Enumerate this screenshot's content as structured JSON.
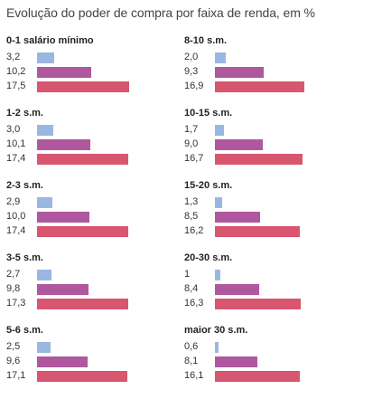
{
  "chart_data": {
    "type": "bar",
    "title": "Evolução do poder de compra por faixa de renda, em %",
    "colors": [
      "#9ab7e2",
      "#b0589e",
      "#d8566f"
    ],
    "groups": [
      {
        "label": "0-1 salário mínimo",
        "values": [
          "3,2",
          "10,2",
          "17,5"
        ]
      },
      {
        "label": "1-2 s.m.",
        "values": [
          "3,0",
          "10,1",
          "17,4"
        ]
      },
      {
        "label": "2-3 s.m.",
        "values": [
          "2,9",
          "10,0",
          "17,4"
        ]
      },
      {
        "label": "3-5 s.m.",
        "values": [
          "2,7",
          "9,8",
          "17,3"
        ]
      },
      {
        "label": "5-6 s.m.",
        "values": [
          "2,5",
          "9,6",
          "17,1"
        ]
      },
      {
        "label": "8-10 s.m.",
        "values": [
          "2,0",
          "9,3",
          "16,9"
        ]
      },
      {
        "label": "10-15 s.m.",
        "values": [
          "1,7",
          "9,0",
          "16,7"
        ]
      },
      {
        "label": "15-20 s.m.",
        "values": [
          "1,3",
          "8,5",
          "16,2"
        ]
      },
      {
        "label": "20-30 s.m.",
        "values": [
          "1",
          "8,4",
          "16,3"
        ]
      },
      {
        "label": "maior 30 s.m.",
        "values": [
          "0,6",
          "8,1",
          "16,1"
        ]
      }
    ]
  }
}
